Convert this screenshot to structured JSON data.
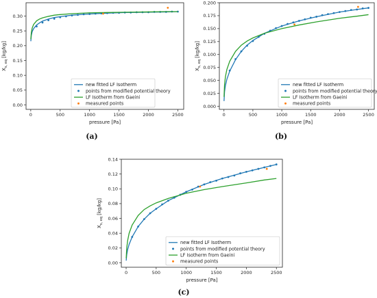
{
  "captions": [
    "(a)",
    "(b)",
    "(c)"
  ],
  "colors": {
    "fitted": "#1f77b4",
    "points": "#1f77b4",
    "gaeini": "#2ca02c",
    "measured": "#ff7f0e"
  },
  "chart_data": [
    {
      "type": "line",
      "xlabel": "pressure [Pa]",
      "ylabel": "X_{s, eq} [kg/kg]",
      "xlim": [
        -80,
        2600
      ],
      "ylim": [
        -0.015,
        0.345
      ],
      "xticks": [
        0,
        500,
        1000,
        1500,
        2000,
        2500
      ],
      "yticks": [
        0.0,
        0.05,
        0.1,
        0.15,
        0.2,
        0.25,
        0.3
      ],
      "ytick_labels": [
        "0.00",
        "0.05",
        "0.10",
        "0.15",
        "0.20",
        "0.25",
        "0.30"
      ],
      "grid": false,
      "legend_position": "bottom-right",
      "series": [
        {
          "name": "new fitted LF Isotherm",
          "kind": "line",
          "color": "#1f77b4",
          "x": [
            1,
            10,
            25,
            50,
            100,
            150,
            200,
            300,
            400,
            500,
            700,
            1000,
            1300,
            1600,
            2000,
            2300,
            2500
          ],
          "y": [
            0.215,
            0.235,
            0.248,
            0.258,
            0.27,
            0.277,
            0.283,
            0.29,
            0.295,
            0.298,
            0.303,
            0.307,
            0.31,
            0.312,
            0.313,
            0.314,
            0.315
          ]
        },
        {
          "name": "points from modified potential theory",
          "kind": "scatter",
          "color": "#1f77b4",
          "x": [
            100,
            200,
            300,
            400,
            500,
            600,
            700,
            800,
            900,
            1000,
            1100,
            1200,
            1300,
            1400,
            1500,
            1600,
            1700,
            1800,
            1900,
            2000,
            2100,
            2200,
            2300,
            2400,
            2500
          ],
          "y": [
            0.265,
            0.278,
            0.286,
            0.291,
            0.296,
            0.299,
            0.302,
            0.304,
            0.306,
            0.307,
            0.308,
            0.309,
            0.31,
            0.311,
            0.311,
            0.312,
            0.312,
            0.313,
            0.313,
            0.313,
            0.314,
            0.314,
            0.314,
            0.315,
            0.315
          ]
        },
        {
          "name": "LF Isotherm from Gaeini",
          "kind": "line",
          "color": "#2ca02c",
          "x": [
            1,
            10,
            25,
            50,
            100,
            150,
            200,
            300,
            400,
            500,
            700,
            1000,
            1300,
            1600,
            2000,
            2300,
            2500
          ],
          "y": [
            0.222,
            0.245,
            0.26,
            0.272,
            0.284,
            0.29,
            0.294,
            0.299,
            0.303,
            0.305,
            0.308,
            0.311,
            0.312,
            0.313,
            0.314,
            0.315,
            0.315
          ]
        },
        {
          "name": "measured points",
          "kind": "scatter",
          "color": "#ff7f0e",
          "x": [
            1230,
            2330
          ],
          "y": [
            0.308,
            0.328
          ]
        }
      ]
    },
    {
      "type": "line",
      "xlabel": "pressure [Pa]",
      "ylabel": "X_{s, eq} [kg/kg]",
      "xlim": [
        -80,
        2600
      ],
      "ylim": [
        -0.006,
        0.2
      ],
      "xticks": [
        0,
        500,
        1000,
        1500,
        2000,
        2500
      ],
      "yticks": [
        0.0,
        0.025,
        0.05,
        0.075,
        0.1,
        0.125,
        0.15,
        0.175,
        0.2
      ],
      "ytick_labels": [
        "0.000",
        "0.025",
        "0.050",
        "0.075",
        "0.100",
        "0.125",
        "0.150",
        "0.175",
        "0.200"
      ],
      "grid": false,
      "legend_position": "bottom-right",
      "series": [
        {
          "name": "new fitted LF Isotherm",
          "kind": "line",
          "color": "#1f77b4",
          "x": [
            1,
            10,
            25,
            50,
            100,
            200,
            300,
            400,
            500,
            700,
            1000,
            1300,
            1600,
            2000,
            2300,
            2500
          ],
          "y": [
            0.01,
            0.028,
            0.04,
            0.052,
            0.068,
            0.09,
            0.106,
            0.118,
            0.127,
            0.141,
            0.155,
            0.165,
            0.173,
            0.182,
            0.187,
            0.19
          ]
        },
        {
          "name": "points from modified potential theory",
          "kind": "scatter",
          "color": "#1f77b4",
          "x": [
            100,
            200,
            300,
            400,
            500,
            600,
            700,
            800,
            900,
            1000,
            1100,
            1200,
            1300,
            1400,
            1500,
            1600,
            1700,
            1800,
            1900,
            2000,
            2100,
            2200,
            2300,
            2400,
            2500
          ],
          "y": [
            0.069,
            0.091,
            0.106,
            0.117,
            0.126,
            0.134,
            0.14,
            0.146,
            0.151,
            0.155,
            0.159,
            0.162,
            0.165,
            0.168,
            0.171,
            0.173,
            0.176,
            0.178,
            0.18,
            0.182,
            0.184,
            0.186,
            0.187,
            0.189,
            0.19
          ]
        },
        {
          "name": "LF Isotherm from Gaeini",
          "kind": "line",
          "color": "#2ca02c",
          "x": [
            1,
            10,
            25,
            50,
            100,
            200,
            300,
            400,
            500,
            700,
            1000,
            1300,
            1600,
            2000,
            2300,
            2500
          ],
          "y": [
            0.018,
            0.042,
            0.057,
            0.071,
            0.087,
            0.106,
            0.118,
            0.126,
            0.132,
            0.141,
            0.15,
            0.157,
            0.163,
            0.17,
            0.174,
            0.177
          ]
        },
        {
          "name": "measured points",
          "kind": "scatter",
          "color": "#ff7f0e",
          "x": [
            1220,
            2320
          ],
          "y": [
            0.158,
            0.192
          ]
        }
      ]
    },
    {
      "type": "line",
      "xlabel": "pressure [Pa]",
      "ylabel": "X_{s, eq} [kg/kg]",
      "xlim": [
        -80,
        2600
      ],
      "ylim": [
        -0.006,
        0.14
      ],
      "xticks": [
        0,
        500,
        1000,
        1500,
        2000,
        2500
      ],
      "yticks": [
        0.0,
        0.02,
        0.04,
        0.06,
        0.08,
        0.1,
        0.12,
        0.14
      ],
      "ytick_labels": [
        "0.00",
        "0.02",
        "0.04",
        "0.06",
        "0.08",
        "0.10",
        "0.12",
        "0.14"
      ],
      "grid": false,
      "legend_position": "bottom-right",
      "series": [
        {
          "name": "new fitted LF Isotherm",
          "kind": "line",
          "color": "#1f77b4",
          "x": [
            1,
            10,
            25,
            50,
            100,
            200,
            300,
            400,
            500,
            700,
            1000,
            1300,
            1600,
            2000,
            2300,
            2500
          ],
          "y": [
            0.003,
            0.011,
            0.018,
            0.025,
            0.035,
            0.049,
            0.059,
            0.067,
            0.073,
            0.084,
            0.096,
            0.106,
            0.114,
            0.123,
            0.129,
            0.133
          ]
        },
        {
          "name": "points from modified potential theory",
          "kind": "scatter",
          "color": "#1f77b4",
          "x": [
            100,
            200,
            300,
            400,
            500,
            600,
            700,
            800,
            900,
            1000,
            1100,
            1200,
            1300,
            1400,
            1500,
            1600,
            1700,
            1800,
            1900,
            2000,
            2100,
            2200,
            2300,
            2400,
            2500
          ],
          "y": [
            0.035,
            0.049,
            0.059,
            0.067,
            0.073,
            0.079,
            0.084,
            0.088,
            0.092,
            0.096,
            0.099,
            0.103,
            0.106,
            0.109,
            0.111,
            0.114,
            0.116,
            0.118,
            0.121,
            0.123,
            0.125,
            0.127,
            0.129,
            0.131,
            0.133
          ]
        },
        {
          "name": "LF Isotherm from Gaeini",
          "kind": "line",
          "color": "#2ca02c",
          "x": [
            1,
            10,
            25,
            50,
            100,
            200,
            300,
            400,
            500,
            700,
            1000,
            1300,
            1600,
            2000,
            2300,
            2500
          ],
          "y": [
            0.006,
            0.02,
            0.03,
            0.04,
            0.051,
            0.064,
            0.072,
            0.077,
            0.081,
            0.087,
            0.094,
            0.099,
            0.103,
            0.108,
            0.112,
            0.114
          ]
        },
        {
          "name": "measured points",
          "kind": "scatter",
          "color": "#ff7f0e",
          "x": [
            1230,
            2340
          ],
          "y": [
            0.103,
            0.127
          ]
        }
      ]
    }
  ]
}
